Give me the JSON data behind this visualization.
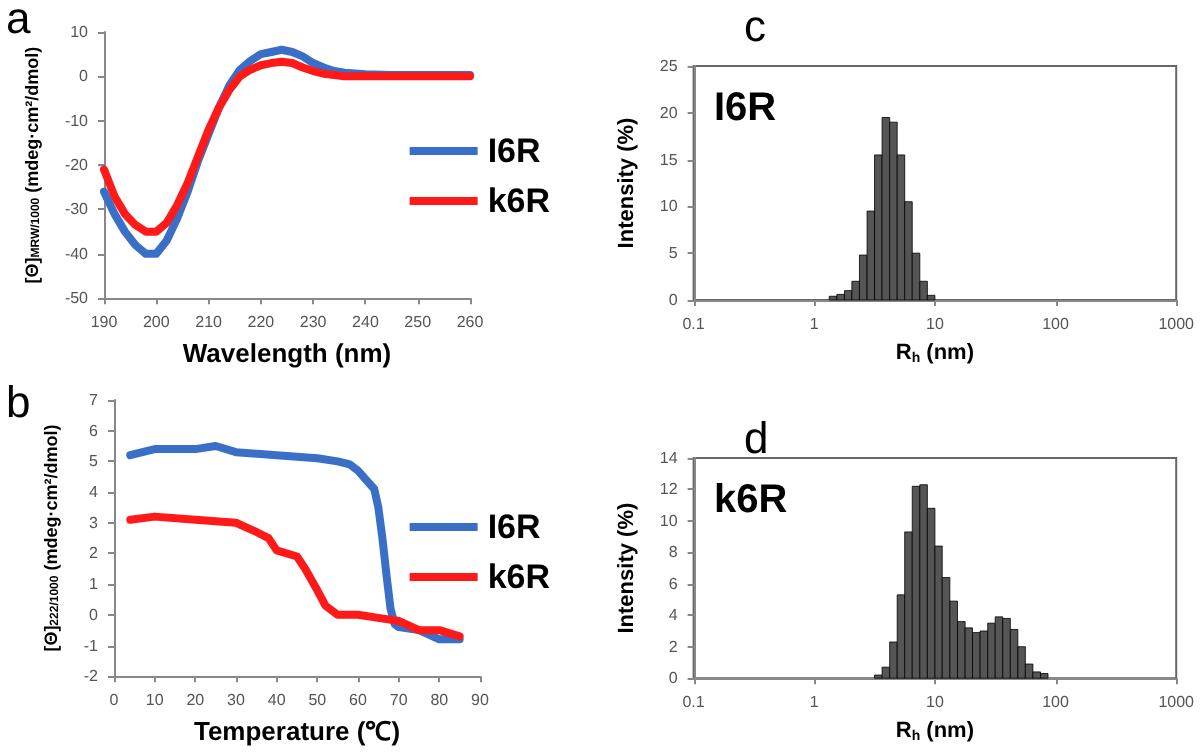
{
  "chart_data": [
    {
      "type": "line",
      "annotations": [
        "a"
      ],
      "xlabel": "Wavelength (nm)",
      "ylabel": "[Θ]$_{MRW/1000}$ (mdeg·cm²/dmol)",
      "xlim": [
        190,
        260
      ],
      "xticks": [
        190,
        200,
        210,
        220,
        230,
        240,
        250,
        260
      ],
      "ylim": [
        -50,
        10
      ],
      "yticks": [
        -50,
        -40,
        -30,
        -20,
        -10,
        0,
        10
      ],
      "legend": "right",
      "grid": false,
      "series": [
        {
          "name": "I6R",
          "color": "#3a6fc8",
          "x": [
            190,
            192,
            194,
            196,
            198,
            200,
            202,
            204,
            206,
            208,
            210,
            212,
            214,
            216,
            218,
            220,
            222,
            224,
            226,
            228,
            230,
            232,
            234,
            236,
            240,
            245,
            250,
            255,
            260
          ],
          "values": [
            -26,
            -31,
            -35,
            -38,
            -40,
            -40,
            -37,
            -32,
            -26,
            -19,
            -13,
            -7,
            -2,
            1.5,
            3.5,
            5,
            5.5,
            6,
            5.5,
            4.5,
            3,
            2,
            1.2,
            0.8,
            0.5,
            0.3,
            0.3,
            0.3,
            0.3
          ]
        },
        {
          "name": "k6R",
          "color": "#ff1a1a",
          "x": [
            190,
            192,
            194,
            196,
            198,
            200,
            202,
            204,
            206,
            208,
            210,
            212,
            214,
            216,
            218,
            220,
            222,
            224,
            226,
            228,
            230,
            232,
            234,
            236,
            240,
            250,
            260
          ],
          "values": [
            -21,
            -27,
            -31,
            -33.5,
            -35,
            -35,
            -33,
            -29,
            -24,
            -18,
            -12,
            -7,
            -3,
            0,
            1.5,
            2.5,
            3,
            3.3,
            3,
            2,
            1.2,
            0.6,
            0.3,
            0,
            0,
            0,
            0
          ]
        }
      ]
    },
    {
      "type": "line",
      "annotations": [
        "b"
      ],
      "xlabel": "Temperature (℃)",
      "ylabel": "[Θ]$_{222/1000}$ (mdeg·cm²/dmol)",
      "xlim": [
        0,
        90
      ],
      "xticks": [
        0,
        10,
        20,
        30,
        40,
        50,
        60,
        70,
        80,
        90
      ],
      "ylim": [
        -2,
        7
      ],
      "yticks": [
        -2,
        -1,
        0,
        1,
        2,
        3,
        4,
        5,
        6,
        7
      ],
      "legend": "right",
      "grid": false,
      "series": [
        {
          "name": "I6R",
          "color": "#3a6fc8",
          "x": [
            4,
            10,
            20,
            25,
            30,
            40,
            50,
            55,
            58,
            60,
            62,
            64,
            65,
            66,
            67,
            68,
            69,
            70,
            75,
            80,
            85
          ],
          "values": [
            5.2,
            5.4,
            5.4,
            5.5,
            5.3,
            5.2,
            5.1,
            5,
            4.9,
            4.7,
            4.4,
            4.1,
            3.5,
            2.5,
            1.3,
            0.2,
            -0.3,
            -0.4,
            -0.5,
            -0.8,
            -0.8
          ]
        },
        {
          "name": "k6R",
          "color": "#ff1a1a",
          "x": [
            4,
            10,
            20,
            30,
            35,
            38,
            40,
            45,
            47,
            50,
            52,
            55,
            60,
            65,
            70,
            75,
            80,
            85
          ],
          "values": [
            3.1,
            3.2,
            3.1,
            3,
            2.7,
            2.5,
            2.1,
            1.9,
            1.5,
            0.8,
            0.3,
            0,
            0,
            -0.1,
            -0.2,
            -0.5,
            -0.5,
            -0.7
          ]
        }
      ]
    },
    {
      "type": "histogram",
      "annotations": [
        "c"
      ],
      "title": "I6R",
      "xlabel": "R$_{h}$ (nm)",
      "ylabel": "Intensity (%)",
      "log": "x",
      "xlim": [
        0.1,
        1000
      ],
      "xticks": [
        0.1,
        1,
        10,
        100,
        1000
      ],
      "ylim": [
        0,
        25
      ],
      "yticks": [
        0,
        5,
        10,
        15,
        20,
        25
      ],
      "grid": false,
      "color": "#555555",
      "bins": [
        1.33,
        1.54,
        1.78,
        2.05,
        2.37,
        2.74,
        3.16,
        3.65,
        4.22,
        4.87,
        5.62,
        6.49,
        7.5,
        8.66,
        10
      ],
      "values": [
        0.4,
        0.6,
        1,
        2,
        4.8,
        9.5,
        15.5,
        19.5,
        19,
        15.5,
        10.5,
        5,
        2,
        0.5
      ]
    },
    {
      "type": "histogram",
      "annotations": [
        "d"
      ],
      "title": "k6R",
      "xlabel": "R$_{h}$ (nm)",
      "ylabel": "Intensity (%)",
      "log": "x",
      "xlim": [
        0.1,
        1000
      ],
      "xticks": [
        0.1,
        1,
        10,
        100,
        1000
      ],
      "ylim": [
        0,
        14
      ],
      "yticks": [
        0,
        2,
        4,
        6,
        8,
        10,
        12,
        14
      ],
      "grid": false,
      "color": "#555555",
      "bins": [
        3.16,
        3.65,
        4.22,
        4.87,
        5.62,
        6.49,
        7.5,
        8.66,
        10,
        11.5,
        13.3,
        15.4,
        17.8,
        20.5,
        23.7,
        27.4,
        31.6,
        36.5,
        42.2,
        48.7,
        56.2,
        64.9,
        75,
        86.6
      ],
      "values": [
        0.2,
        0.7,
        2.3,
        5.3,
        9.3,
        12.2,
        12.3,
        10.8,
        8.4,
        6.4,
        4.9,
        3.6,
        3.2,
        2.9,
        3,
        3.5,
        3.9,
        3.8,
        3.1,
        2,
        0.9,
        0.4,
        0.3
      ]
    }
  ]
}
